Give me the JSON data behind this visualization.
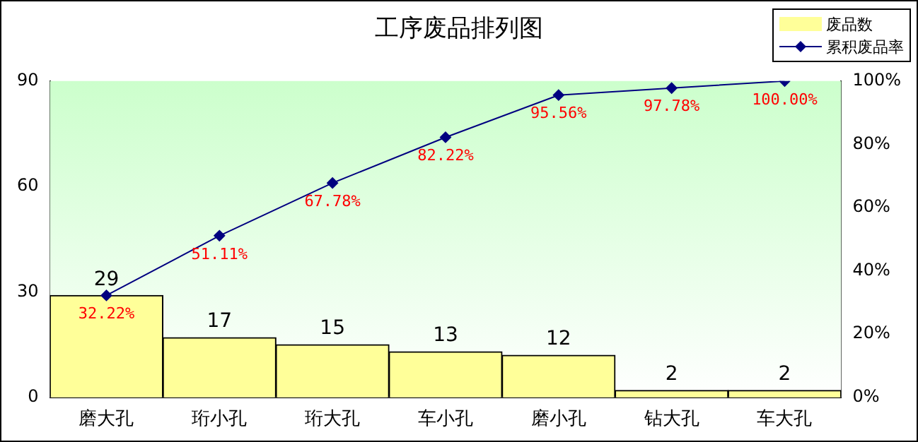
{
  "chart_data": {
    "type": "bar",
    "title": "工序废品排列图",
    "categories": [
      "磨大孔",
      "珩小孔",
      "珩大孔",
      "车小孔",
      "磨小孔",
      "钻大孔",
      "车大孔"
    ],
    "series": [
      {
        "name": "废品数",
        "color": "#ffff99",
        "values": [
          29,
          17,
          15,
          13,
          12,
          2,
          2
        ],
        "value_labels": [
          "29",
          "17",
          "15",
          "13",
          "12",
          "2",
          "2"
        ]
      },
      {
        "name": "累积废品率",
        "type": "line",
        "axis": "y2",
        "color": "#000080",
        "values": [
          32.22,
          51.11,
          67.78,
          82.22,
          95.56,
          97.78,
          100
        ],
        "value_labels": [
          "32.22%",
          "51.11%",
          "67.78%",
          "82.22%",
          "95.56%",
          "97.78%",
          "100.00%"
        ]
      }
    ],
    "ylim": [
      0,
      90
    ],
    "yticks": [
      0,
      30,
      60,
      90
    ],
    "y2lim": [
      0,
      100
    ],
    "y2ticks": [
      {
        "value": 0,
        "label": "0%"
      },
      {
        "value": 20,
        "label": "20%"
      },
      {
        "value": 40,
        "label": "40%"
      },
      {
        "value": 60,
        "label": "60%"
      },
      {
        "value": 80,
        "label": "80%"
      },
      {
        "value": 100,
        "label": "100%"
      }
    ],
    "legend": "top right",
    "marker": "diamond",
    "grid": false
  }
}
